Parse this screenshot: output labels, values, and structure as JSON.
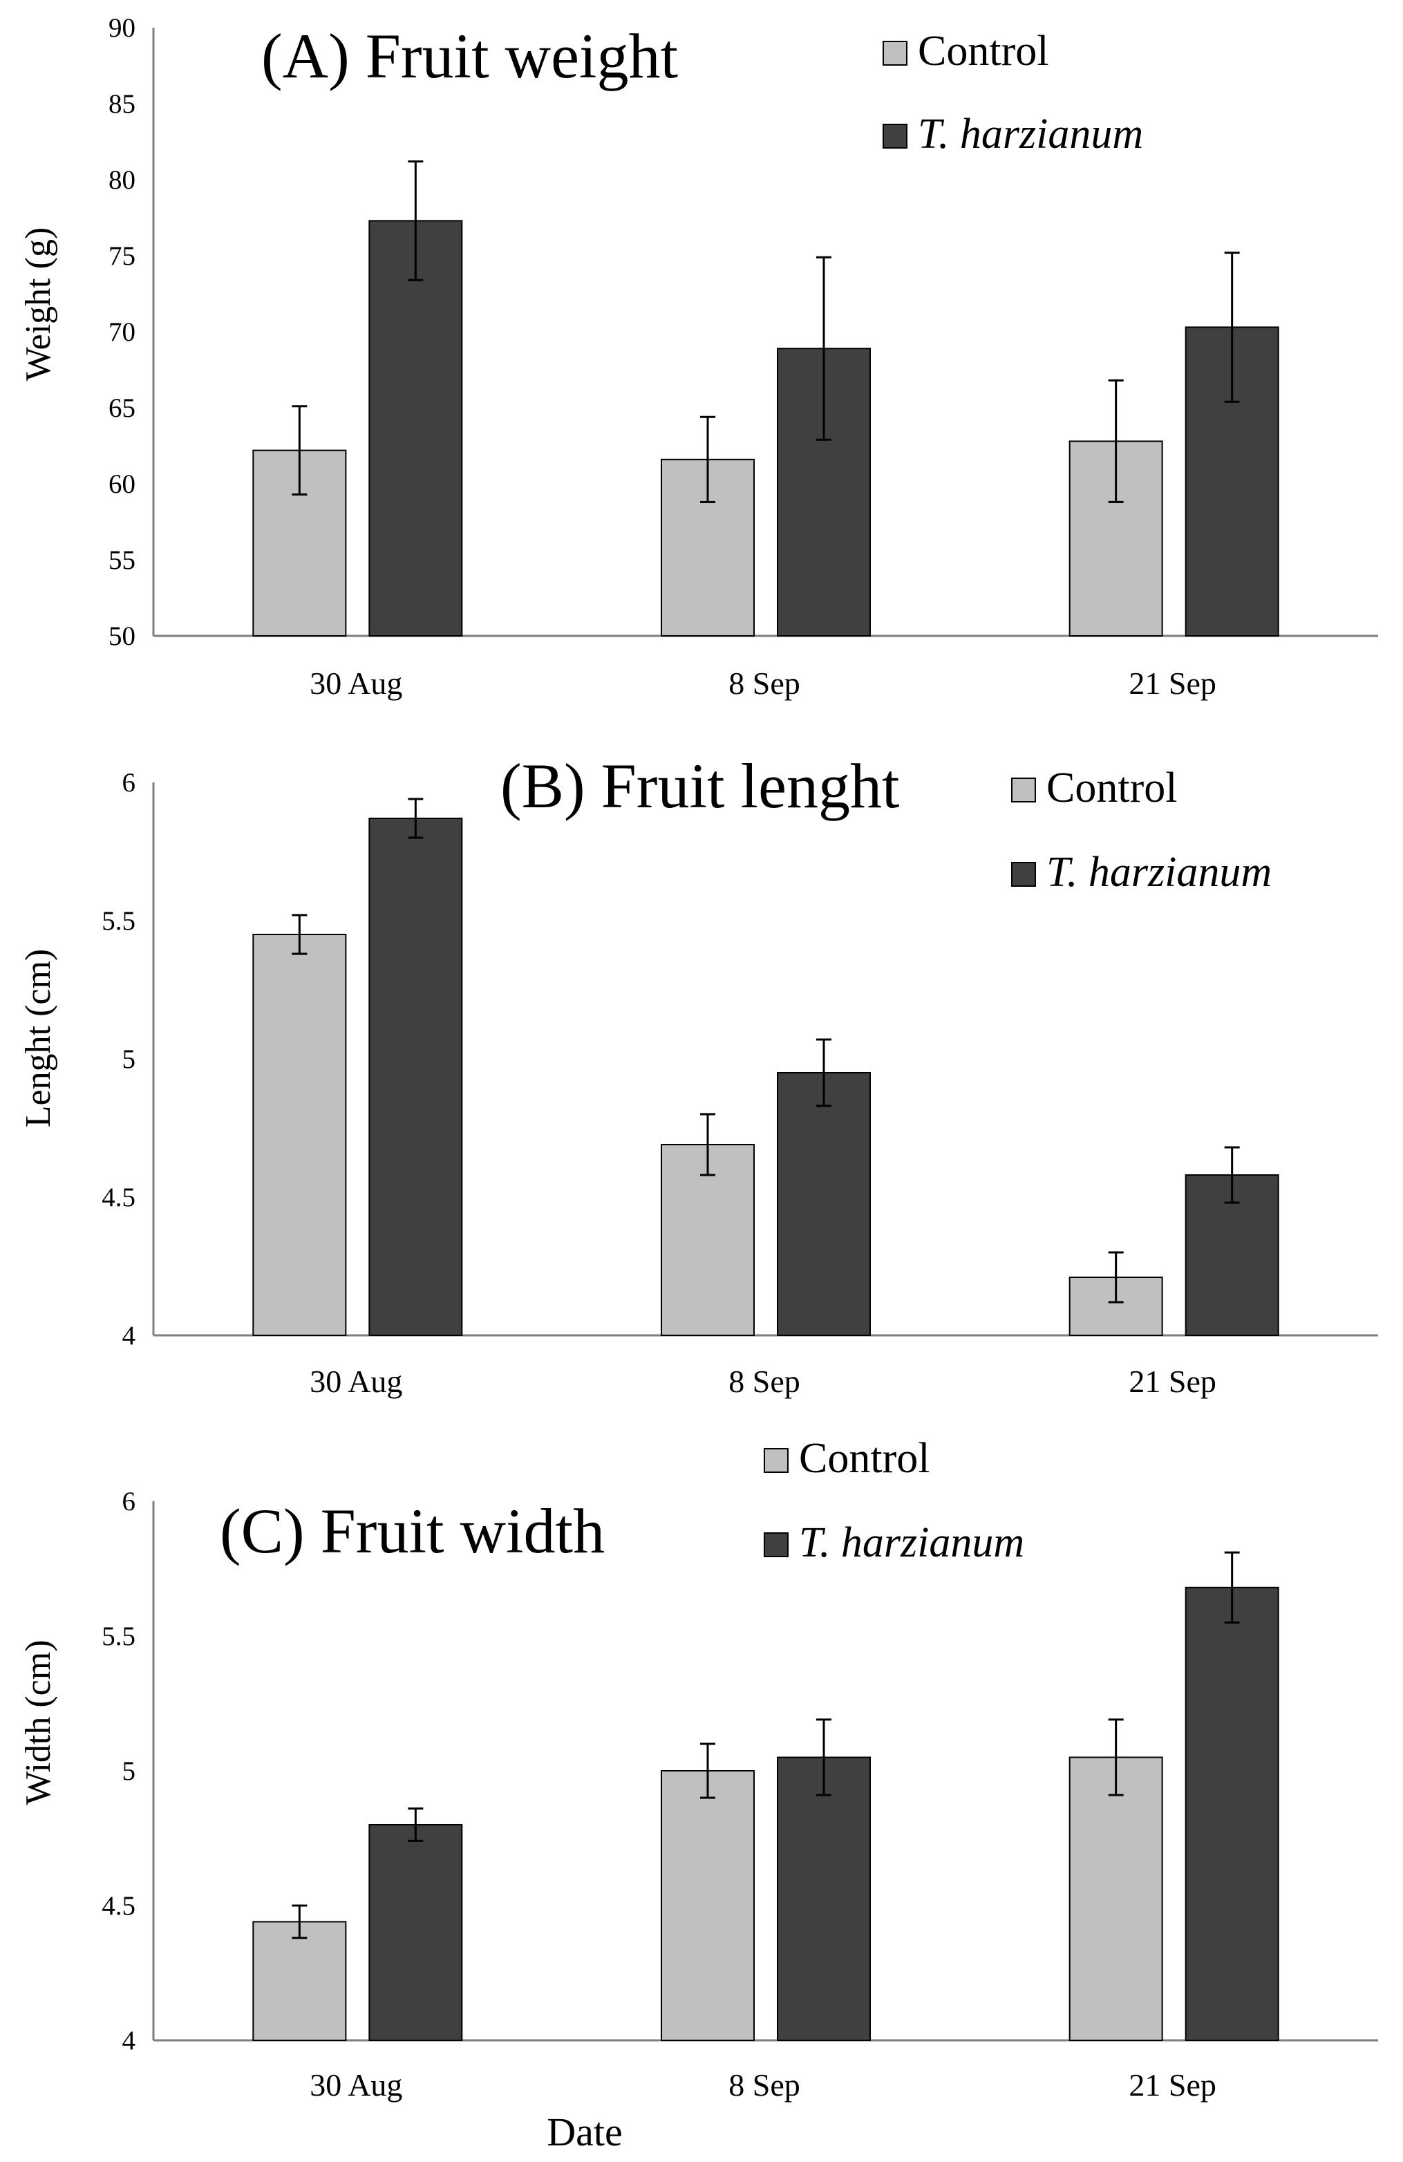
{
  "chart_data": [
    {
      "type": "bar",
      "title": "(A) Fruit weight",
      "ylabel": "Weight  (g)",
      "xlabel": "",
      "ylim": [
        50,
        90
      ],
      "yticks": [
        "50",
        "55",
        "60",
        "65",
        "70",
        "75",
        "80",
        "85",
        "90"
      ],
      "categories": [
        "30 Aug",
        "8 Sep",
        "21 Sep"
      ],
      "series": [
        {
          "name": "Control",
          "values": [
            62.2,
            61.6,
            62.8
          ],
          "errors": [
            2.9,
            2.8,
            4.0
          ],
          "color": "#c0c0c0"
        },
        {
          "name": "T. harzianum",
          "values": [
            77.3,
            68.9,
            70.3
          ],
          "errors": [
            3.9,
            6.0,
            4.9
          ],
          "color": "#404040"
        }
      ],
      "legend": "top-right"
    },
    {
      "type": "bar",
      "title": "(B) Fruit lenght",
      "ylabel": "Lenght  (cm)",
      "xlabel": "",
      "ylim": [
        4,
        6
      ],
      "yticks": [
        "4",
        "4.5",
        "5",
        "5.5",
        "6"
      ],
      "categories": [
        "30 Aug",
        "8 Sep",
        "21 Sep"
      ],
      "series": [
        {
          "name": "Control",
          "values": [
            5.45,
            4.69,
            4.21
          ],
          "errors": [
            0.07,
            0.11,
            0.09
          ],
          "color": "#c0c0c0"
        },
        {
          "name": "T. harzianum",
          "values": [
            5.87,
            4.95,
            4.58
          ],
          "errors": [
            0.07,
            0.12,
            0.1
          ],
          "color": "#404040"
        }
      ],
      "legend": "top-right"
    },
    {
      "type": "bar",
      "title": "(C) Fruit width",
      "ylabel": "Width (cm)",
      "xlabel": "Date",
      "ylim": [
        4,
        6
      ],
      "yticks": [
        "4",
        "4.5",
        "5",
        "5.5",
        "6"
      ],
      "categories": [
        "30 Aug",
        "8 Sep",
        "21 Sep"
      ],
      "series": [
        {
          "name": "Control",
          "values": [
            4.44,
            5.0,
            5.05
          ],
          "errors": [
            0.06,
            0.1,
            0.14
          ],
          "color": "#c0c0c0"
        },
        {
          "name": "T. harzianum",
          "values": [
            4.8,
            5.05,
            5.68
          ],
          "errors": [
            0.06,
            0.14,
            0.13
          ],
          "color": "#404040"
        }
      ],
      "legend": "top"
    }
  ]
}
